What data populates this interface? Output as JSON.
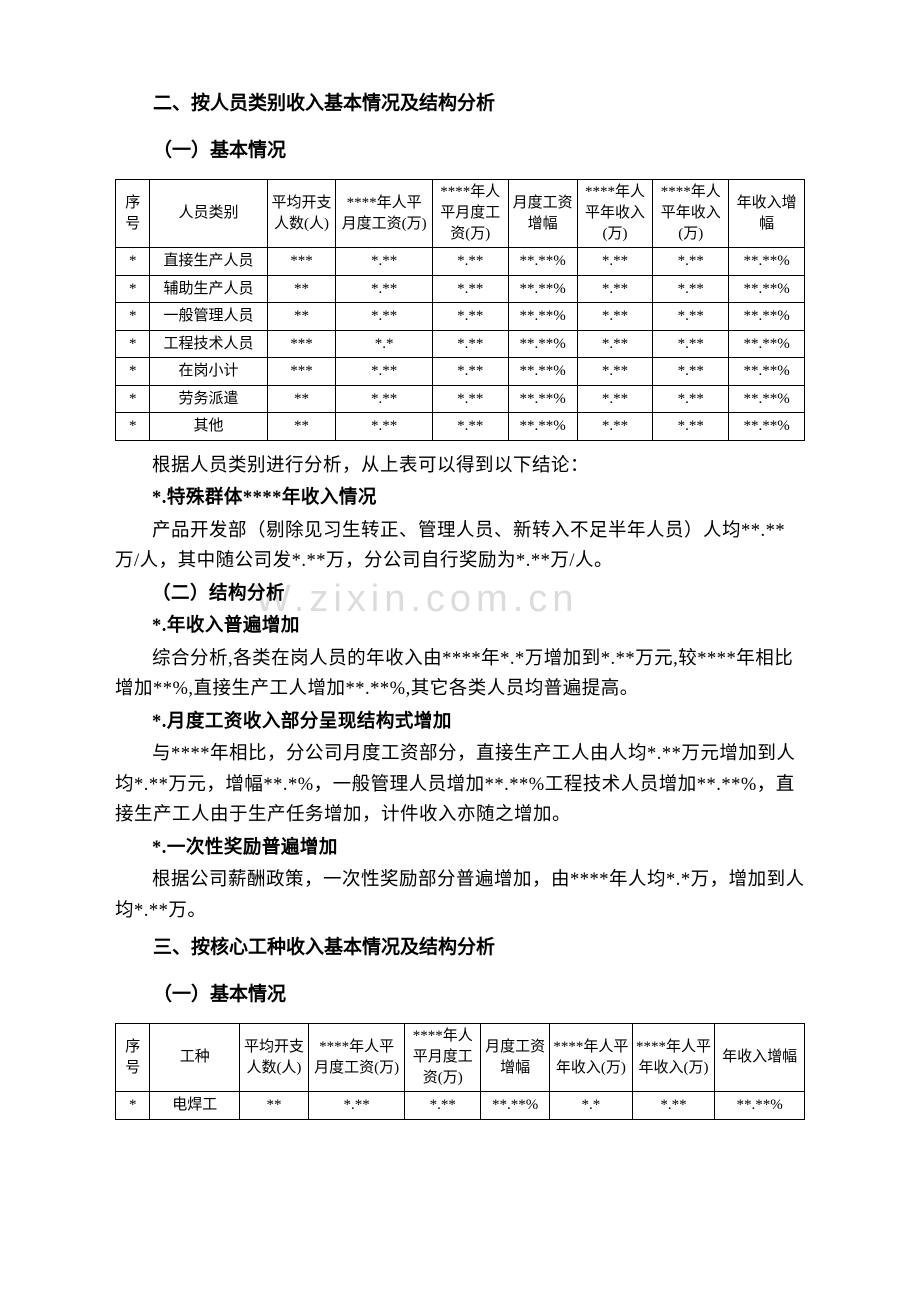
{
  "section2": {
    "title": "二、按人员类别收入基本情况及结构分析",
    "sub1_title": "（一）基本情况",
    "table": {
      "headers": [
        "序号",
        "人员类别",
        "平均开支人数(人)",
        "****年人平月度工资(万)",
        "****年人平月度工资(万)",
        "月度工资增幅",
        "****年人平年收入(万)",
        "****年人平年收入(万)",
        "年收入增幅"
      ],
      "rows": [
        [
          "*",
          "直接生产人员",
          "***",
          "*.**",
          "*.**",
          "**.**%",
          "*.**",
          "*.**",
          "**.**%"
        ],
        [
          "*",
          "辅助生产人员",
          "**",
          "*.**",
          "*.**",
          "**.**%",
          "*.**",
          "*.**",
          "**.**%"
        ],
        [
          "*",
          "一般管理人员",
          "**",
          "*.**",
          "*.**",
          "**.**%",
          "*.**",
          "*.**",
          "**.**%"
        ],
        [
          "*",
          "工程技术人员",
          "***",
          "*.*",
          "*.**",
          "**.**%",
          "*.**",
          "*.**",
          "**.**%"
        ],
        [
          "*",
          "在岗小计",
          "***",
          "*.**",
          "*.**",
          "**.**%",
          "*.**",
          "*.**",
          "**.**%"
        ],
        [
          "*",
          "劳务派遣",
          "**",
          "*.**",
          "*.**",
          "**.**%",
          "*.**",
          "*.**",
          "**.**%"
        ],
        [
          "*",
          "其他",
          "**",
          "*.**",
          "*.**",
          "**.**%",
          "*.**",
          "*.**",
          "**.**%"
        ]
      ],
      "col_widths": [
        "5%",
        "17%",
        "10%",
        "14%",
        "11%",
        "10%",
        "11%",
        "11%",
        "11%"
      ]
    },
    "para_after_table": "根据人员类别进行分析，从上表可以得到以下结论：",
    "special_title": "*.特殊群体****年收入情况",
    "special_p1": "产品开发部（剔除见习生转正、管理人员、新转入不足半年人员）人均**.**万/人，其中随公司发*.**万，分公司自行奖励为*.**万/人。",
    "sub2_title": "（二）结构分析",
    "inc_title": "*.年收入普遍增加",
    "inc_p": "综合分析,各类在岗人员的年收入由****年*.*万增加到*.**万元,较****年相比增加**%,直接生产工人增加**.**%,其它各类人员均普遍提高。",
    "month_title": "*.月度工资收入部分呈现结构式增加",
    "month_p": "与****年相比，分公司月度工资部分，直接生产工人由人均*.**万元增加到人均*.**万元，增幅**.*%，一般管理人员增加**.**%工程技术人员增加**.**%，直接生产工人由于生产任务增加，计件收入亦随之增加。",
    "bonus_title": "*.一次性奖励普遍增加",
    "bonus_p": "根据公司薪酬政策，一次性奖励部分普遍增加，由****年人均*.*万，增加到人均*.**万。"
  },
  "section3": {
    "title": "三、按核心工种收入基本情况及结构分析",
    "sub1_title": "（一）基本情况",
    "table": {
      "headers": [
        "序号",
        "工种",
        "平均开支人数(人)",
        "****年人平月度工资(万)",
        "****年人平月度工资(万)",
        "月度工资增幅",
        "****年人平年收入(万)",
        "****年人平年收入(万)",
        "年收入增幅"
      ],
      "rows": [
        [
          "*",
          "电焊工",
          "**",
          "*.**",
          "*.**",
          "**.**%",
          "*.*",
          "*.**",
          "**.**%"
        ]
      ],
      "col_widths": [
        "5%",
        "13%",
        "10%",
        "14%",
        "11%",
        "10%",
        "12%",
        "12%",
        "13%"
      ]
    }
  },
  "watermark": "W.zixin.com.cn",
  "styles": {
    "font_family": "SimSun",
    "body_fontsize": 18,
    "heading_fontsize": 19,
    "table_fontsize": 15,
    "text_color": "#000000",
    "background_color": "#ffffff",
    "border_color": "#000000",
    "watermark_color": "#dcdcdc",
    "watermark_fontsize": 38
  }
}
